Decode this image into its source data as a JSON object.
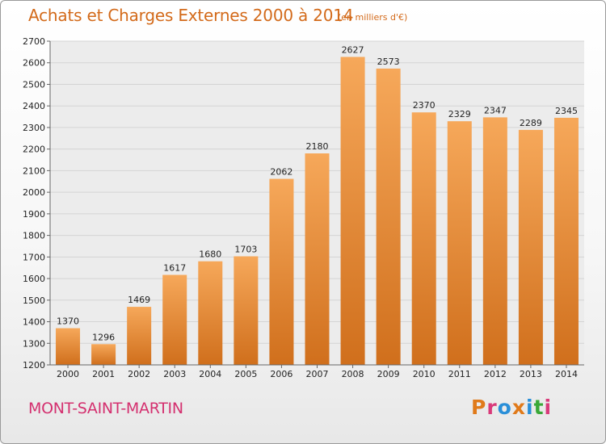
{
  "header": {
    "title": "Achats et Charges Externes 2000 à 2014",
    "subtitle": "(en milliers d'€)"
  },
  "footer": {
    "place": "MONT-SAINT-MARTIN",
    "brand_letters": [
      "P",
      "r",
      "o",
      "x",
      "i",
      "t",
      "i"
    ],
    "brand_colors": [
      "#e07a1a",
      "#d93a7a",
      "#2a8fd8",
      "#e07a1a",
      "#2a8fd8",
      "#3aa838",
      "#d93a7a"
    ]
  },
  "colors": {
    "bar_top": "#f6a85a",
    "bar_bottom": "#d06f1c",
    "grid": "#d4d4d4",
    "axis_text": "#222222",
    "title": "#d36a1a"
  },
  "chart_data": {
    "type": "bar",
    "title": "Achats et Charges Externes 2000 à 2014",
    "subtitle": "(en milliers d'€)",
    "categories": [
      "2000",
      "2001",
      "2002",
      "2003",
      "2004",
      "2005",
      "2006",
      "2007",
      "2008",
      "2009",
      "2010",
      "2011",
      "2012",
      "2013",
      "2014"
    ],
    "values": [
      1370,
      1296,
      1469,
      1617,
      1680,
      1703,
      2062,
      2180,
      2627,
      2573,
      2370,
      2329,
      2347,
      2289,
      2345
    ],
    "ylim": [
      1200,
      2700
    ],
    "yticks": [
      1200,
      1300,
      1400,
      1500,
      1600,
      1700,
      1800,
      1900,
      2000,
      2100,
      2200,
      2300,
      2400,
      2500,
      2600,
      2700
    ],
    "grid": true,
    "data_labels": true
  }
}
